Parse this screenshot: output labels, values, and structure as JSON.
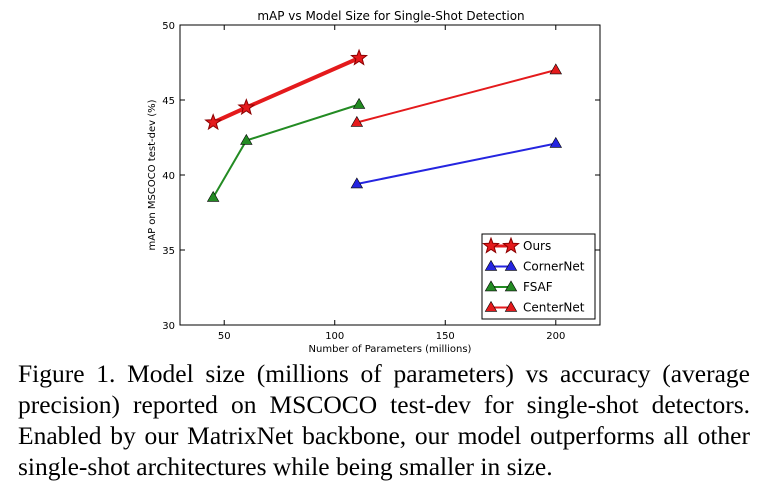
{
  "chart_data": {
    "type": "line",
    "title": "mAP vs Model Size for Single-Shot Detection",
    "xlabel": "Number of Parameters (millions)",
    "ylabel": "mAP on MSCOCO test-dev (%)",
    "xlim": [
      30,
      220
    ],
    "ylim": [
      30,
      50
    ],
    "xticks": [
      50,
      100,
      150,
      200
    ],
    "yticks": [
      30,
      35,
      40,
      45,
      50
    ],
    "grid": false,
    "legend_position": "lower-right",
    "series": [
      {
        "name": "Ours",
        "marker": "star",
        "color": "#e41a1c",
        "x": [
          45,
          60,
          111
        ],
        "y": [
          43.5,
          44.5,
          47.8
        ]
      },
      {
        "name": "CornerNet",
        "marker": "triangle",
        "color": "#2525e0",
        "x": [
          110,
          200
        ],
        "y": [
          39.4,
          42.1
        ]
      },
      {
        "name": "FSAF",
        "marker": "triangle",
        "color": "#238b23",
        "x": [
          45,
          60,
          111
        ],
        "y": [
          38.5,
          42.3,
          44.7
        ]
      },
      {
        "name": "CenterNet",
        "marker": "triangle",
        "color": "#e41a1c",
        "x": [
          110,
          200
        ],
        "y": [
          43.5,
          47.0
        ]
      }
    ]
  },
  "caption": "Figure 1. Model size (millions of parameters) vs accuracy (average precision) reported on MSCOCO test-dev for single-shot detectors. Enabled by our MatrixNet backbone, our model outperforms all other single-shot architectures while being smaller in size."
}
